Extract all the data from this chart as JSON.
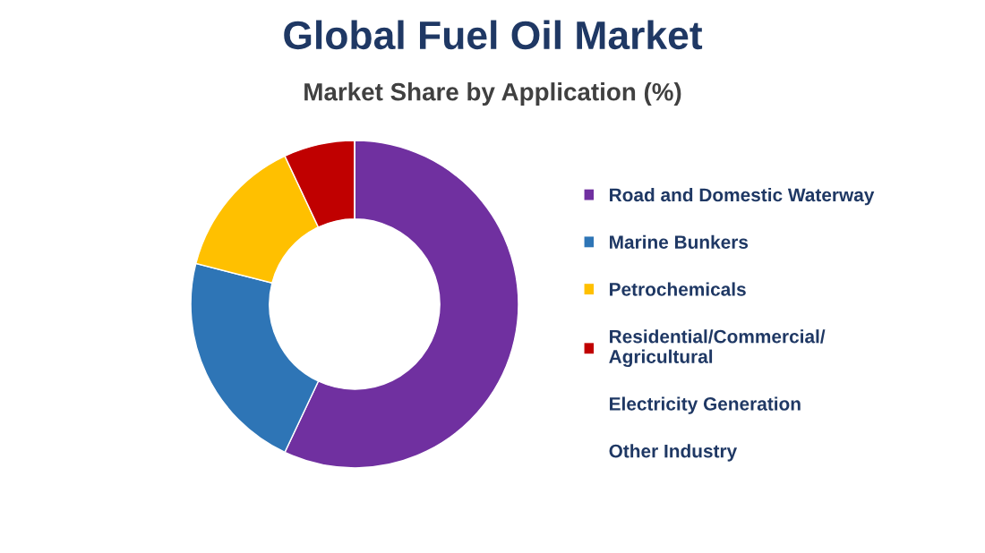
{
  "chart_data": {
    "type": "donut",
    "title": "Global Fuel Oil Market",
    "subtitle": "Market Share by Application (%)",
    "categories": [
      "Road and Domestic Waterway",
      "Marine Bunkers",
      "Petrochemicals",
      "Residential/Commercial/\nAgricultural",
      "Electricity Generation",
      "Other Industry"
    ],
    "values": [
      57,
      22,
      14,
      7,
      0,
      0
    ],
    "colors": [
      "#7030a0",
      "#2e75b6",
      "#ffc000",
      "#c00000",
      "#ffffff",
      "#ffffff"
    ],
    "legend": "right"
  }
}
